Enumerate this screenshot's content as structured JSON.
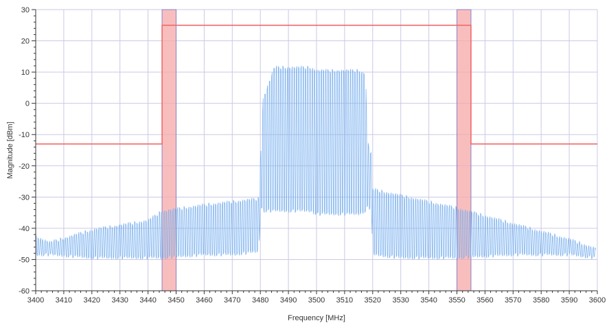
{
  "chart_data": {
    "type": "line",
    "title": "",
    "xlabel": "Frequency [MHz]",
    "ylabel": "Magnitude [dBm]",
    "xlim": [
      3400,
      3600
    ],
    "ylim": [
      -60,
      30
    ],
    "x_ticks": [
      3400,
      3410,
      3420,
      3430,
      3440,
      3450,
      3460,
      3470,
      3480,
      3490,
      3500,
      3510,
      3520,
      3530,
      3540,
      3550,
      3560,
      3570,
      3580,
      3590,
      3600
    ],
    "x_tick_labels": [
      "3400",
      "3410",
      "3420",
      "3430",
      "3440",
      "3450",
      "3460",
      "3470",
      "3480",
      "3490",
      "3500",
      "3510",
      "3520",
      "3530",
      "3540",
      "3550",
      "3560",
      "3570",
      "3580",
      "3590",
      "3600"
    ],
    "y_ticks": [
      -60,
      -50,
      -40,
      -30,
      -20,
      -10,
      0,
      10,
      20,
      30
    ],
    "y_tick_labels": [
      "-60",
      "-50",
      "-40",
      "-30",
      "-20",
      "-10",
      "0",
      "10",
      "20",
      "30"
    ],
    "grid": true,
    "legend": "none",
    "colors": {
      "spectrum": "#7fb3ef",
      "mask": "#f06a6a",
      "band_fill": "#f5a8a8",
      "band_edge": "#8a7fc8",
      "grid": "#c9c9e6",
      "axis": "#333333"
    },
    "highlight_bands": [
      {
        "x0": 3445,
        "x1": 3450
      },
      {
        "x0": 3550,
        "x1": 3555
      }
    ],
    "mask_line": {
      "x": [
        3400,
        3445,
        3445,
        3555,
        3555,
        3600
      ],
      "y": [
        -13,
        -13,
        25,
        25,
        -13,
        -13
      ]
    },
    "spectrum_envelope": {
      "x": [
        3400,
        3405,
        3420,
        3440,
        3445,
        3460,
        3470,
        3479.5,
        3480,
        3481,
        3485,
        3498,
        3500,
        3515,
        3517.5,
        3518,
        3519.5,
        3520,
        3530,
        3550,
        3570,
        3590,
        3599.5
      ],
      "max": [
        -42,
        -44,
        -40,
        -37,
        -34,
        -32,
        -31,
        -30,
        -18,
        2,
        12,
        12,
        11,
        11,
        10,
        -11,
        -16,
        -27,
        -29,
        -33,
        -38,
        -43,
        -46
      ],
      "min": [
        -49,
        -49,
        -50,
        -50,
        -50,
        -49,
        -49,
        -48,
        -33,
        -35,
        -35,
        -35,
        -36,
        -36,
        -35,
        -34,
        -34,
        -49,
        -50,
        -50,
        -49,
        -49,
        -50
      ]
    }
  }
}
